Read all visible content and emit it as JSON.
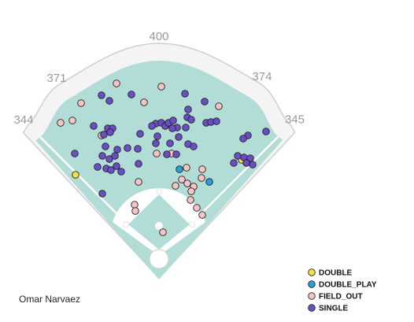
{
  "chart_data": {
    "type": "scatter",
    "player": "Omar Narvaez",
    "wall_distances": [
      344,
      371,
      400,
      374,
      345
    ],
    "legend": "bottom-right",
    "series": [
      {
        "name": "DOUBLE",
        "color": "#f2e24a",
        "x": [
          -106,
          105
        ],
        "y": [
          103,
          122
        ]
      },
      {
        "name": "DOUBLE_PLAY",
        "color": "#2a9fd8",
        "x": [
          26,
          64
        ],
        "y": [
          110,
          94
        ]
      },
      {
        "name": "FIELD_OUT",
        "color": "#f6c4c4",
        "x": [
          -54,
          3,
          -99,
          -19,
          76,
          -125,
          -110,
          -73,
          -3,
          16,
          35,
          55,
          54,
          -26,
          29,
          21,
          36,
          44,
          41,
          40,
          -31,
          -30,
          48,
          55,
          5
        ],
        "y": [
          219,
          215,
          194,
          195,
          190,
          169,
          172,
          153,
          130,
          130,
          112,
          110,
          99,
          94,
          97,
          89,
          92,
          88,
          82,
          71,
          65,
          57,
          61,
          52,
          30
        ]
      },
      {
        "name": "SINGLE",
        "color": "#6a4ec4",
        "x": [
          -73,
          -63,
          -35,
          33,
          58,
          37,
          -83,
          -65,
          -59,
          -70,
          -62,
          -4,
          -9,
          3,
          8,
          12,
          18,
          36,
          41,
          34,
          23,
          -24,
          -2,
          17,
          60,
          66,
          73,
          136,
          113,
          107,
          14,
          25,
          37,
          44,
          -4,
          -68,
          -53,
          -40,
          -27,
          10,
          22,
          -72,
          -63,
          -56,
          -78,
          -67,
          -54,
          -48,
          -26,
          -107,
          100,
          108,
          116,
          95,
          119,
          -72,
          -61,
          111
        ],
        "y": [
          204,
          197,
          205,
          206,
          196,
          186,
          165,
          162,
          162,
          154,
          157,
          168,
          165,
          169,
          165,
          169,
          172,
          176,
          173,
          163,
          163,
          155,
          152,
          162,
          169,
          170,
          171,
          158,
          153,
          149,
          143,
          151,
          142,
          139,
          143,
          139,
          135,
          137,
          136,
          129,
          129,
          127,
          123,
          127,
          113,
          111,
          114,
          107,
          117,
          130,
          127,
          125,
          124,
          118,
          116,
          79,
          109,
          118
        ]
      }
    ]
  }
}
